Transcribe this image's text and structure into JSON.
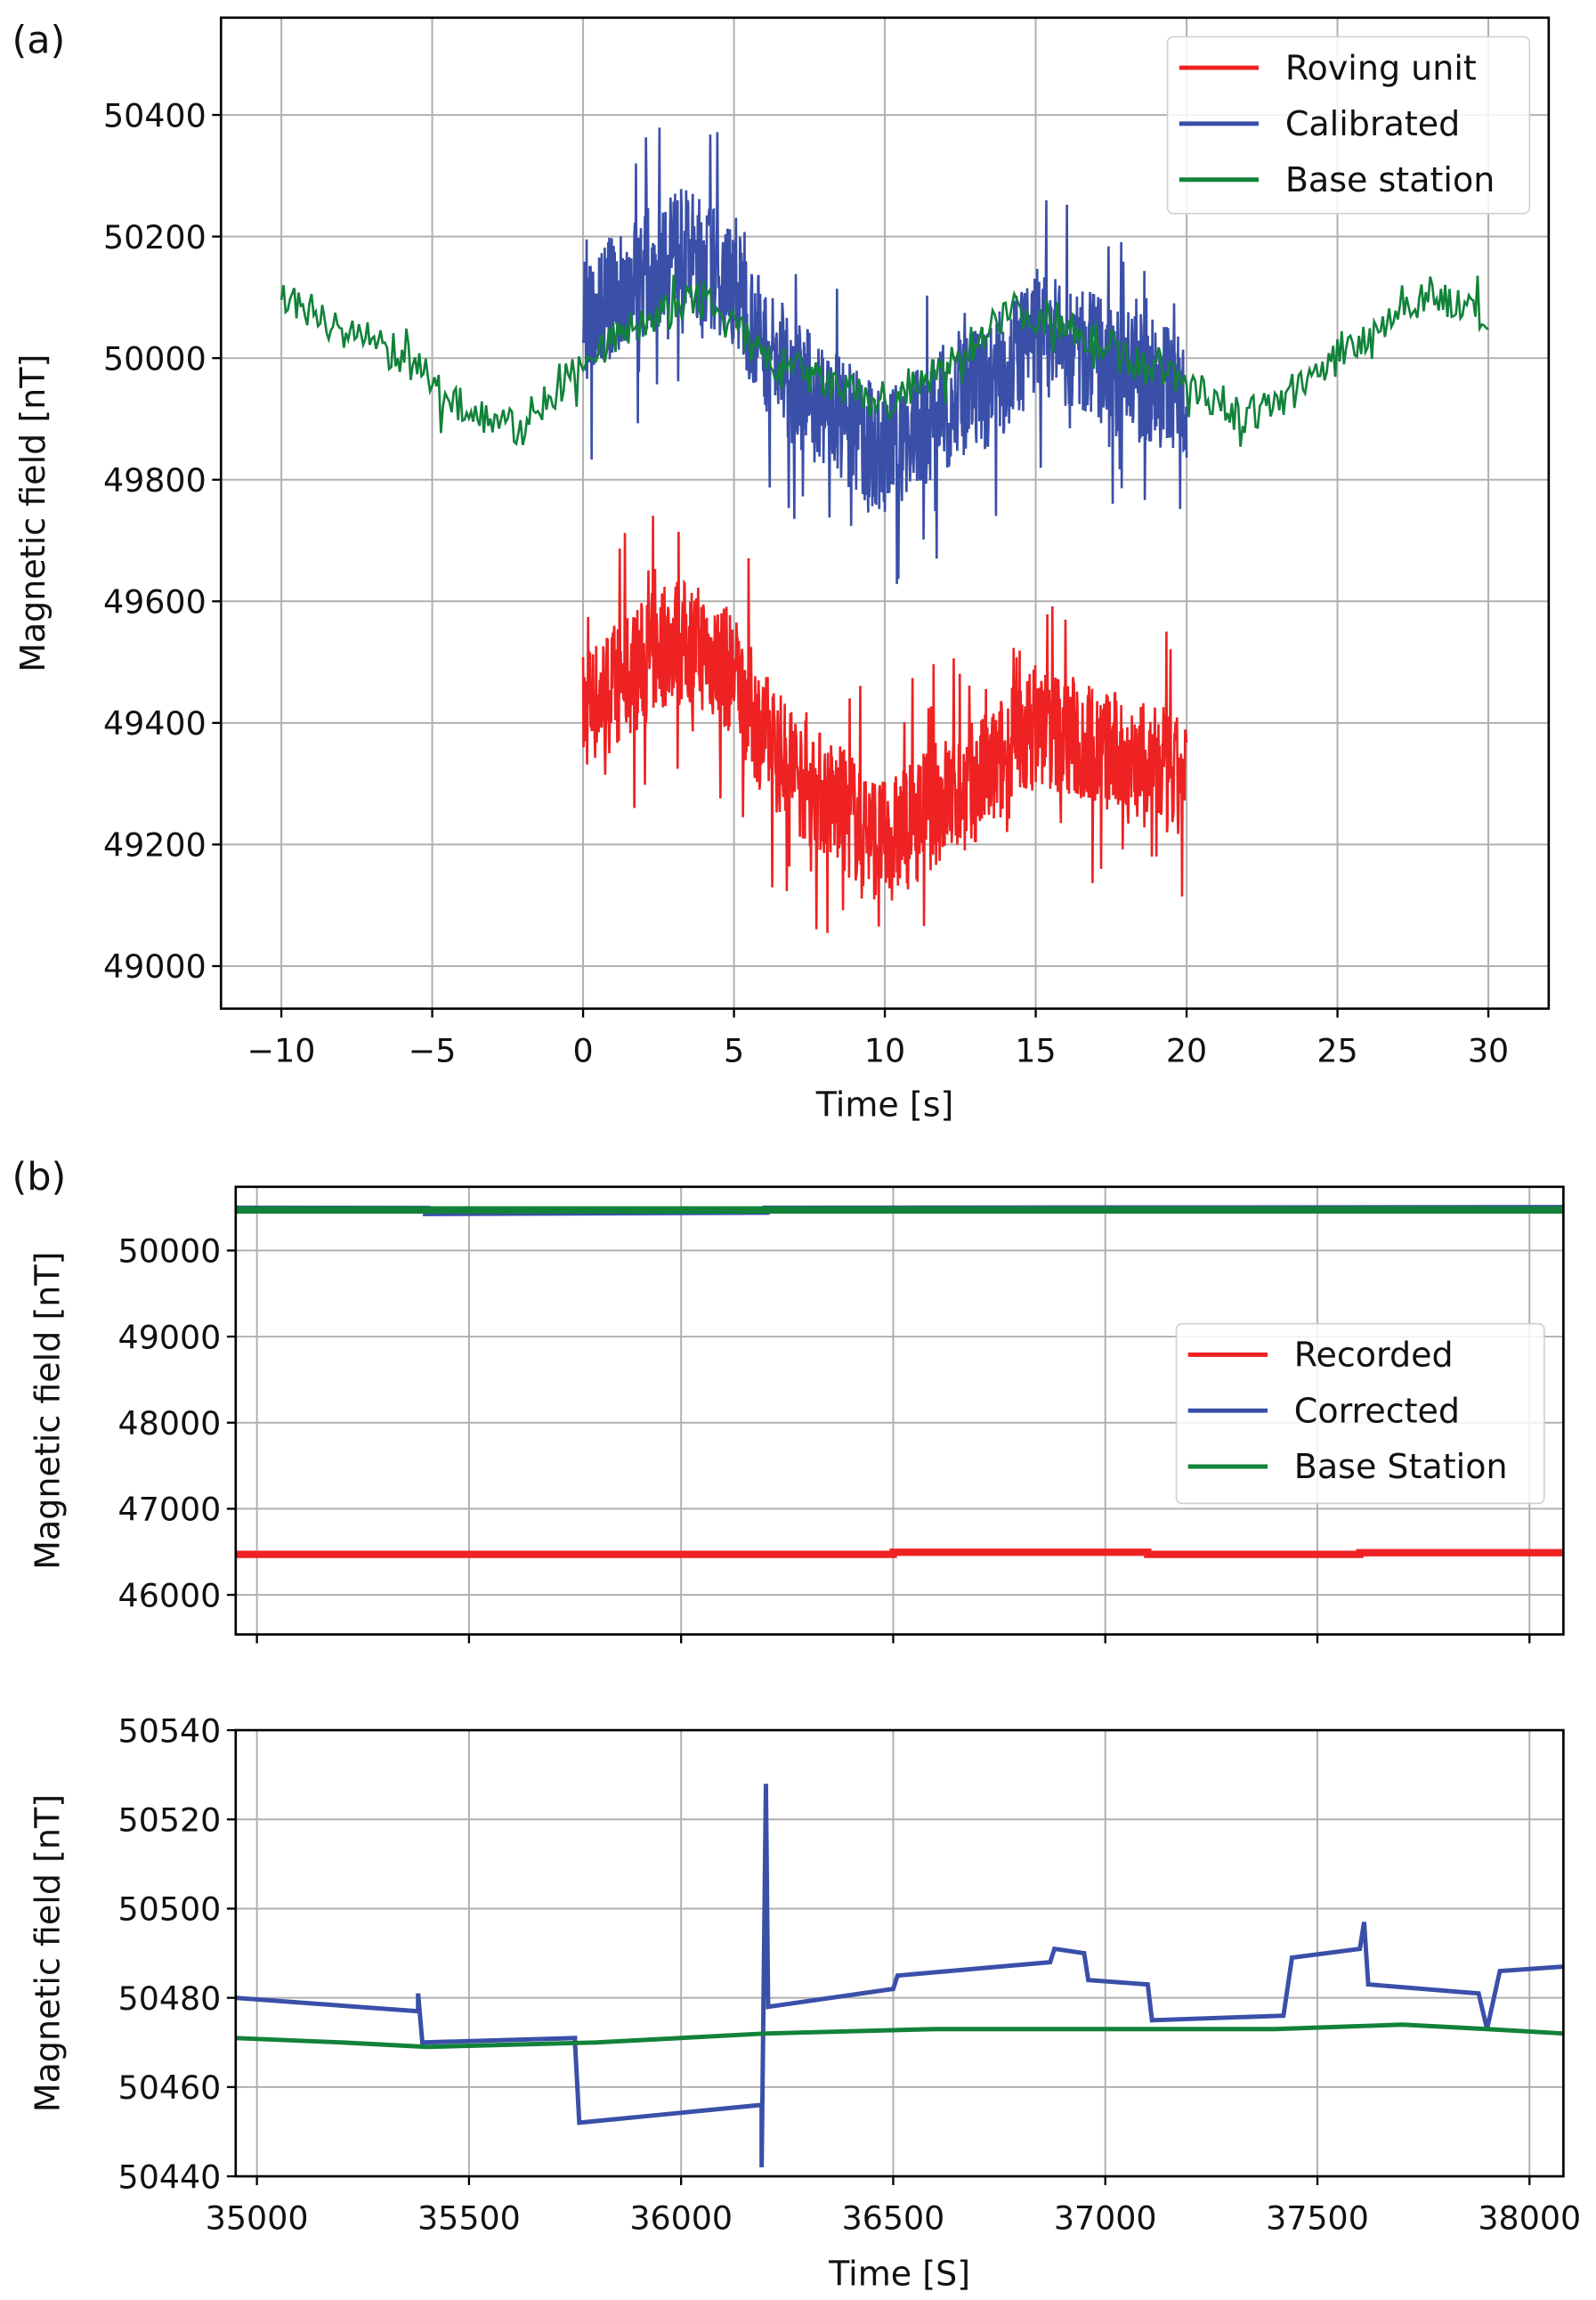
{
  "chart_data": [
    {
      "panel_label": "(a)",
      "type": "line",
      "xlabel": "Time [s]",
      "ylabel": "Magnetic field [nT]",
      "xlim": [
        -12,
        32
      ],
      "ylim": [
        48930,
        50560
      ],
      "xticks": [
        -10,
        -5,
        0,
        5,
        10,
        15,
        20,
        25,
        30
      ],
      "xtick_labels": [
        "−10",
        "−5",
        "0",
        "5",
        "10",
        "15",
        "20",
        "25",
        "30"
      ],
      "yticks": [
        49000,
        49200,
        49400,
        49600,
        49800,
        50000,
        50200,
        50400
      ],
      "ytick_labels": [
        "49000",
        "49200",
        "49400",
        "49600",
        "49800",
        "50000",
        "50200",
        "50400"
      ],
      "grid": true,
      "legend_position": "top-right",
      "series": [
        {
          "name": "Roving unit",
          "color": "#ee2222",
          "noise": 150,
          "points": [
            [
              0,
              49420
            ],
            [
              1,
              49460
            ],
            [
              2,
              49500
            ],
            [
              3,
              49540
            ],
            [
              4,
              49520
            ],
            [
              5,
              49480
            ],
            [
              6,
              49380
            ],
            [
              7,
              49320
            ],
            [
              8,
              49280
            ],
            [
              9,
              49240
            ],
            [
              10,
              49200
            ],
            [
              11,
              49240
            ],
            [
              12,
              49280
            ],
            [
              13,
              49300
            ],
            [
              14,
              49340
            ],
            [
              15,
              49400
            ],
            [
              16,
              49380
            ],
            [
              17,
              49360
            ],
            [
              18,
              49340
            ],
            [
              19,
              49320
            ],
            [
              20,
              49300
            ]
          ]
        },
        {
          "name": "Calibrated",
          "color": "#3a4fa8",
          "noise": 150,
          "points": [
            [
              0,
              50060
            ],
            [
              1,
              50100
            ],
            [
              2,
              50140
            ],
            [
              3,
              50180
            ],
            [
              4,
              50160
            ],
            [
              5,
              50120
            ],
            [
              6,
              50020
            ],
            [
              7,
              49960
            ],
            [
              8,
              49920
            ],
            [
              9,
              49880
            ],
            [
              10,
              49840
            ],
            [
              11,
              49880
            ],
            [
              12,
              49920
            ],
            [
              13,
              49940
            ],
            [
              14,
              49980
            ],
            [
              15,
              50040
            ],
            [
              16,
              50020
            ],
            [
              17,
              50000
            ],
            [
              18,
              49980
            ],
            [
              19,
              49960
            ],
            [
              20,
              49940
            ]
          ]
        },
        {
          "name": "Base station",
          "color": "#12823a",
          "noise": 45,
          "points": [
            [
              -10,
              50100
            ],
            [
              -8,
              50050
            ],
            [
              -6,
              50000
            ],
            [
              -4,
              49920
            ],
            [
              -2,
              49880
            ],
            [
              0,
              50000
            ],
            [
              2,
              50060
            ],
            [
              4,
              50100
            ],
            [
              6,
              50000
            ],
            [
              8,
              49960
            ],
            [
              10,
              49920
            ],
            [
              12,
              49980
            ],
            [
              14,
              50080
            ],
            [
              16,
              50060
            ],
            [
              18,
              50000
            ],
            [
              20,
              49960
            ],
            [
              22,
              49900
            ],
            [
              24,
              49960
            ],
            [
              26,
              50040
            ],
            [
              28,
              50110
            ],
            [
              30,
              50060
            ]
          ]
        }
      ]
    },
    {
      "panel_label": "(b)",
      "type": "line",
      "xlabel": "",
      "ylabel": "Magnetic field [nT]",
      "xlim": [
        34950,
        38080
      ],
      "ylim": [
        45540,
        50740
      ],
      "xticks": [
        35000,
        35500,
        36000,
        36500,
        37000,
        37500,
        38000
      ],
      "xtick_labels": [],
      "yticks": [
        46000,
        47000,
        48000,
        49000,
        50000
      ],
      "ytick_labels": [
        "46000",
        "47000",
        "48000",
        "49000",
        "50000"
      ],
      "grid": true,
      "legend_position": "center-right",
      "series": [
        {
          "name": "Recorded",
          "color": "#ee2222",
          "noise": 0,
          "points": [
            [
              34950,
              46470
            ],
            [
              36500,
              46470
            ],
            [
              36500,
              46495
            ],
            [
              37100,
              46495
            ],
            [
              37100,
              46470
            ],
            [
              37600,
              46470
            ],
            [
              37600,
              46490
            ],
            [
              38080,
              46490
            ]
          ]
        },
        {
          "name": "Corrected",
          "color": "#3a4fa8",
          "noise": 0,
          "points": [
            [
              34950,
              50480
            ],
            [
              35400,
              50477
            ],
            [
              35400,
              50440
            ],
            [
              36200,
              50456
            ],
            [
              36200,
              50480
            ],
            [
              38080,
              50487
            ]
          ]
        },
        {
          "name": "Base Station",
          "color": "#12823a",
          "noise": 0,
          "points": [
            [
              34950,
              50471
            ],
            [
              38080,
              50472
            ]
          ]
        }
      ]
    },
    {
      "panel_label": "",
      "type": "line",
      "xlabel": "Time [S]",
      "ylabel": "Magnetic field [nT]",
      "xlim": [
        34950,
        38080
      ],
      "ylim": [
        50440,
        50540
      ],
      "xticks": [
        35000,
        35500,
        36000,
        36500,
        37000,
        37500,
        38000
      ],
      "xtick_labels": [
        "35000",
        "35500",
        "36000",
        "36500",
        "37000",
        "37500",
        "38000"
      ],
      "yticks": [
        50440,
        50460,
        50480,
        50500,
        50520,
        50540
      ],
      "ytick_labels": [
        "50440",
        "50460",
        "50480",
        "50500",
        "50520",
        "50540"
      ],
      "grid": true,
      "legend_position": "none",
      "series": [
        {
          "name": "Corrected",
          "color": "#3a4fa8",
          "noise": 0,
          "points": [
            [
              34950,
              50480
            ],
            [
              35380,
              50477
            ],
            [
              35380,
              50481
            ],
            [
              35390,
              50470
            ],
            [
              35750,
              50471
            ],
            [
              35750,
              50470
            ],
            [
              35760,
              50452
            ],
            [
              36190,
              50456
            ],
            [
              36190,
              50442
            ],
            [
              36200,
              50528
            ],
            [
              36205,
              50478
            ],
            [
              36500,
              50482
            ],
            [
              36510,
              50485
            ],
            [
              36870,
              50488
            ],
            [
              36880,
              50491
            ],
            [
              36950,
              50490
            ],
            [
              36960,
              50484
            ],
            [
              37100,
              50483
            ],
            [
              37110,
              50475
            ],
            [
              37420,
              50476
            ],
            [
              37440,
              50489
            ],
            [
              37600,
              50491
            ],
            [
              37610,
              50497
            ],
            [
              37620,
              50483
            ],
            [
              37880,
              50481
            ],
            [
              37900,
              50473
            ],
            [
              37930,
              50486
            ],
            [
              38080,
              50487
            ]
          ]
        },
        {
          "name": "Base Station",
          "color": "#12823a",
          "noise": 0,
          "points": [
            [
              34950,
              50471
            ],
            [
              35200,
              50470
            ],
            [
              35400,
              50469
            ],
            [
              35800,
              50470
            ],
            [
              36200,
              50472
            ],
            [
              36600,
              50473
            ],
            [
              37000,
              50473
            ],
            [
              37400,
              50473
            ],
            [
              37700,
              50474
            ],
            [
              37900,
              50473
            ],
            [
              38080,
              50472
            ]
          ]
        }
      ]
    }
  ]
}
